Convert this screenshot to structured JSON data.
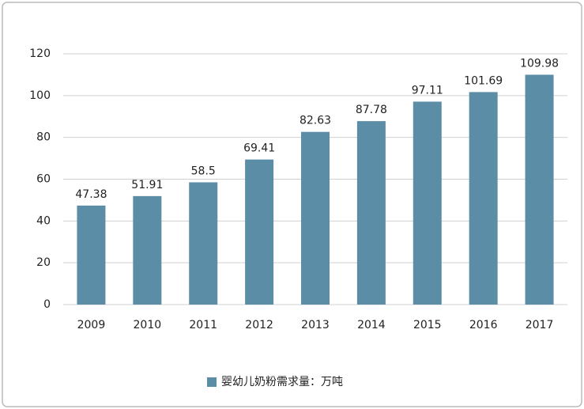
{
  "chart_data": {
    "type": "bar",
    "categories": [
      "2009",
      "2010",
      "2011",
      "2012",
      "2013",
      "2014",
      "2015",
      "2016",
      "2017"
    ],
    "series": [
      {
        "name": "婴幼儿奶粉需求量：万吨",
        "color": "#5b8ea6",
        "values": [
          47.38,
          51.91,
          58.5,
          69.41,
          82.63,
          87.78,
          97.11,
          101.69,
          109.98
        ]
      }
    ],
    "ylim": [
      0,
      120
    ],
    "yticks": [
      0,
      20,
      40,
      60,
      80,
      100,
      120
    ],
    "grid": true,
    "legend": "bottom"
  }
}
